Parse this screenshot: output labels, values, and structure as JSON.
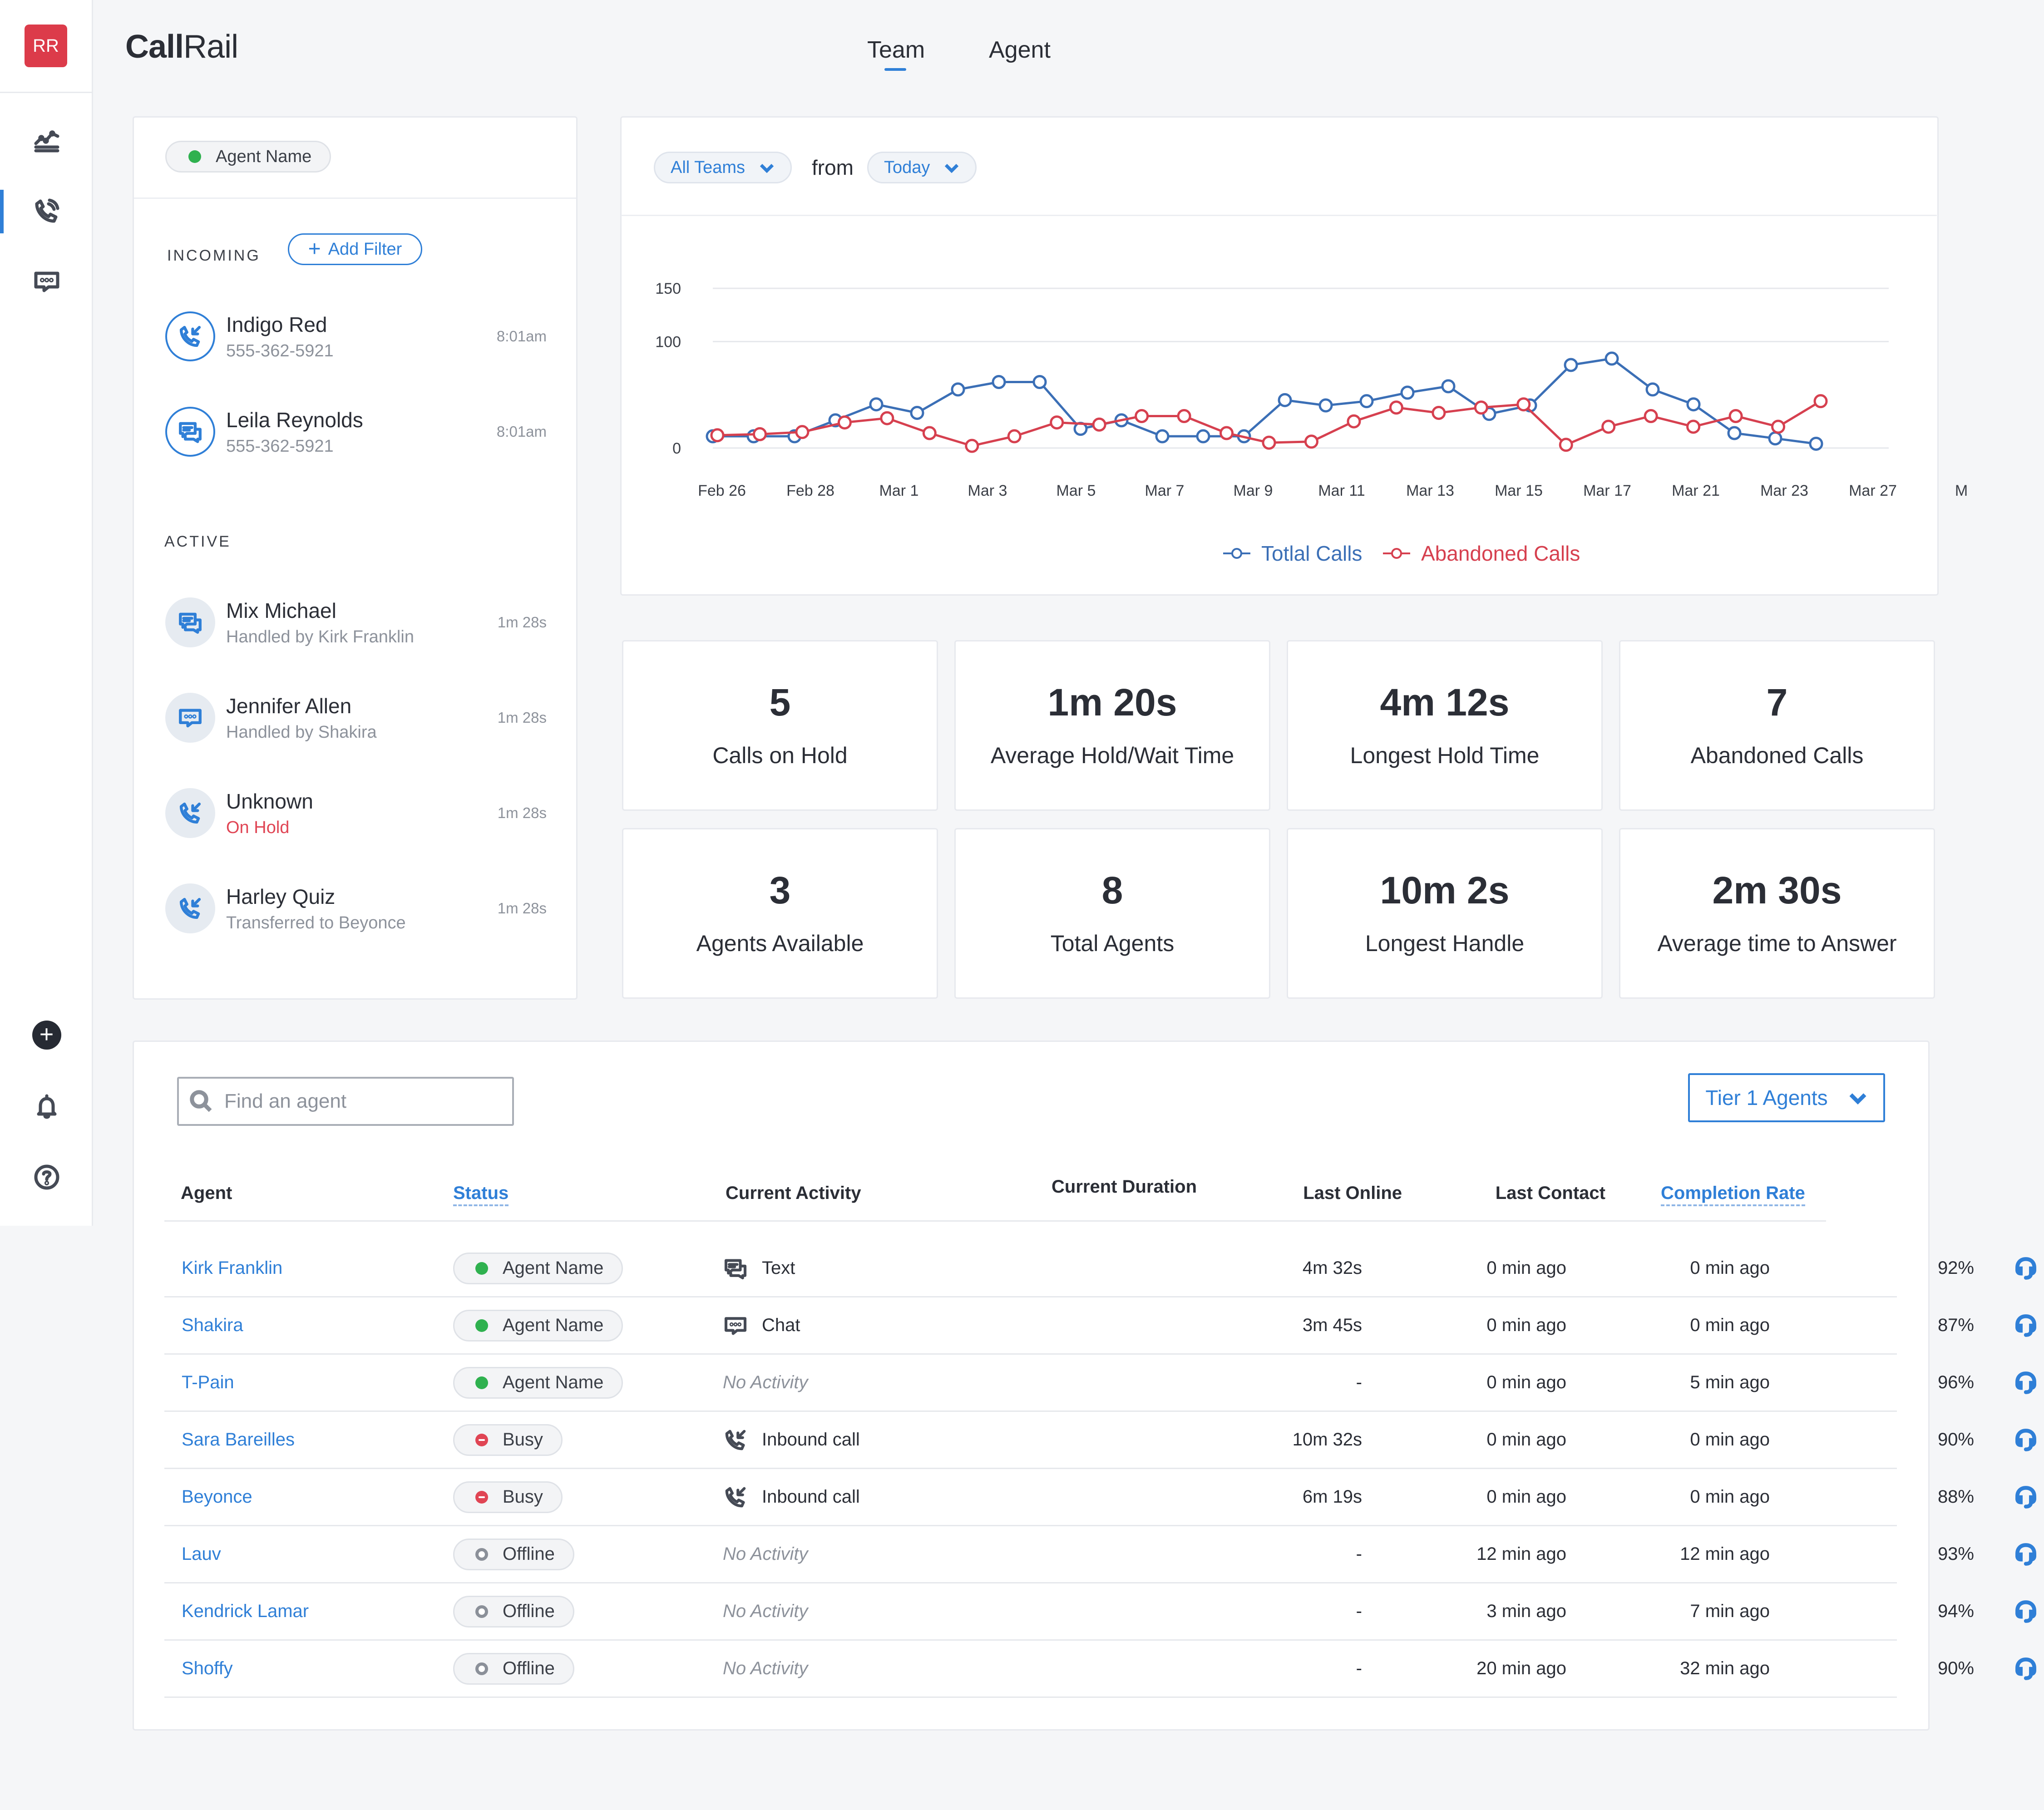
{
  "sidebar": {
    "avatar_initials": "RR",
    "nav": [
      {
        "icon": "analytics-chart-icon"
      },
      {
        "icon": "phone-calls-icon",
        "active": true
      },
      {
        "icon": "chat-bubble-icon"
      }
    ],
    "bottom": [
      {
        "icon": "add-circle-icon"
      },
      {
        "icon": "bell-icon"
      },
      {
        "icon": "help-circle-icon"
      }
    ]
  },
  "header": {
    "logo_bold": "Call",
    "logo_regular": "Rail",
    "tabs": [
      {
        "label": "Team",
        "active": true
      },
      {
        "label": "Agent",
        "active": false
      }
    ]
  },
  "queue": {
    "agent_pill": "Agent Name",
    "incoming_label": "INCOMING",
    "add_filter": "Add Filter",
    "incoming": [
      {
        "name": "Indigo Red",
        "sub": "555-362-5921",
        "time": "8:01am",
        "icon": "incoming-call-icon"
      },
      {
        "name": "Leila Reynolds",
        "sub": "555-362-5921",
        "time": "8:01am",
        "icon": "text-message-icon"
      }
    ],
    "active_label": "ACTIVE",
    "active": [
      {
        "name": "Mix Michael",
        "sub": "Handled by Kirk Franklin",
        "time": "1m 28s",
        "icon": "text-message-icon"
      },
      {
        "name": "Jennifer Allen",
        "sub": "Handled by Shakira",
        "time": "1m 28s",
        "icon": "chat-bubble-icon"
      },
      {
        "name": "Unknown",
        "sub": "On Hold",
        "time": "1m 28s",
        "icon": "incoming-call-icon",
        "sub_color": "#e04554"
      },
      {
        "name": "Harley Quiz",
        "sub": "Transferred to Beyonce",
        "time": "1m 28s",
        "icon": "incoming-call-icon"
      }
    ]
  },
  "filters": {
    "team_select": "All Teams",
    "from_label": "from",
    "date_select": "Today"
  },
  "chart_data": {
    "type": "line",
    "x_tick_labels": [
      "Feb 26",
      "Feb 28",
      "Mar 1",
      "Mar 3",
      "Mar 5",
      "Mar 7",
      "Mar 9",
      "Mar 11",
      "Mar 13",
      "Mar 15",
      "Mar 17",
      "Mar 21",
      "Mar 23",
      "Mar 27",
      "M"
    ],
    "y_ticks": [
      0,
      100,
      150
    ],
    "ylim": [
      -15,
      165
    ],
    "grid": true,
    "legend_position": "bottom-center",
    "series": [
      {
        "name": "Totlal Calls",
        "color": "#3b6fb6",
        "values": [
          11,
          11,
          11,
          26,
          41,
          33,
          55,
          62,
          62,
          18,
          26,
          11,
          11,
          11,
          45,
          40,
          44,
          52,
          58,
          32,
          40,
          78,
          84,
          55,
          41,
          14,
          9,
          4
        ]
      },
      {
        "name": "Abandoned Calls",
        "color": "#d6404f",
        "values": [
          12,
          13,
          15,
          24,
          28,
          14,
          2,
          11,
          24,
          22,
          30,
          30,
          14,
          5,
          6,
          25,
          38,
          33,
          38,
          41,
          3,
          20,
          30,
          20,
          30,
          20,
          44
        ]
      }
    ]
  },
  "stats": [
    {
      "value": "5",
      "label": "Calls on Hold"
    },
    {
      "value": "1m 20s",
      "label": "Average Hold/Wait Time"
    },
    {
      "value": "4m 12s",
      "label": "Longest Hold Time"
    },
    {
      "value": "7",
      "label": "Abandoned Calls"
    },
    {
      "value": "3",
      "label": "Agents Available"
    },
    {
      "value": "8",
      "label": "Total Agents"
    },
    {
      "value": "10m 2s",
      "label": "Longest Handle"
    },
    {
      "value": "2m 30s",
      "label": "Average time to Answer"
    }
  ],
  "table": {
    "search_placeholder": "Find an agent",
    "tier_select": "Tier 1 Agents",
    "columns": {
      "agent": "Agent",
      "status": "Status",
      "activity": "Current Activity",
      "duration": "Current Duration",
      "last_online": "Last Online",
      "last_contact": "Last Contact",
      "completion": "Completion Rate"
    },
    "rows": [
      {
        "agent": "Kirk Franklin",
        "status": "Agent Name",
        "status_kind": "green",
        "activity": "Text",
        "activity_icon": "text-message-icon",
        "duration": "4m 32s",
        "last_online": "0 min ago",
        "last_contact": "0  min ago",
        "rate": "92%"
      },
      {
        "agent": "Shakira",
        "status": "Agent Name",
        "status_kind": "green",
        "activity": "Chat",
        "activity_icon": "chat-bubble-icon",
        "duration": "3m 45s",
        "last_online": "0 min ago",
        "last_contact": "0  min ago",
        "rate": "87%"
      },
      {
        "agent": "T-Pain",
        "status": "Agent Name",
        "status_kind": "green",
        "activity": "No Activity",
        "activity_icon": "",
        "duration": "-",
        "last_online": "0 min ago",
        "last_contact": "5 min ago",
        "rate": "96%"
      },
      {
        "agent": "Sara Bareilles",
        "status": "Busy",
        "status_kind": "red",
        "activity": "Inbound call",
        "activity_icon": "incoming-call-icon",
        "duration": "10m 32s",
        "last_online": "0 min ago",
        "last_contact": "0  min ago",
        "rate": "90%"
      },
      {
        "agent": "Beyonce",
        "status": "Busy",
        "status_kind": "red",
        "activity": "Inbound call",
        "activity_icon": "incoming-call-icon",
        "duration": "6m 19s",
        "last_online": "0 min ago",
        "last_contact": "0 min ago",
        "rate": "88%"
      },
      {
        "agent": "Lauv",
        "status": "Offline",
        "status_kind": "grey",
        "activity": "No Activity",
        "activity_icon": "",
        "duration": "-",
        "last_online": "12 min ago",
        "last_contact": "12 min ago",
        "rate": "93%"
      },
      {
        "agent": "Kendrick Lamar",
        "status": "Offline",
        "status_kind": "grey",
        "activity": "No Activity",
        "activity_icon": "",
        "duration": "-",
        "last_online": "3 min ago",
        "last_contact": "7 min ago",
        "rate": "94%"
      },
      {
        "agent": "Shoffy",
        "status": "Offline",
        "status_kind": "grey",
        "activity": "No Activity",
        "activity_icon": "",
        "duration": "-",
        "last_online": "20 min ago",
        "last_contact": "32 min ago",
        "rate": "90%"
      }
    ]
  }
}
